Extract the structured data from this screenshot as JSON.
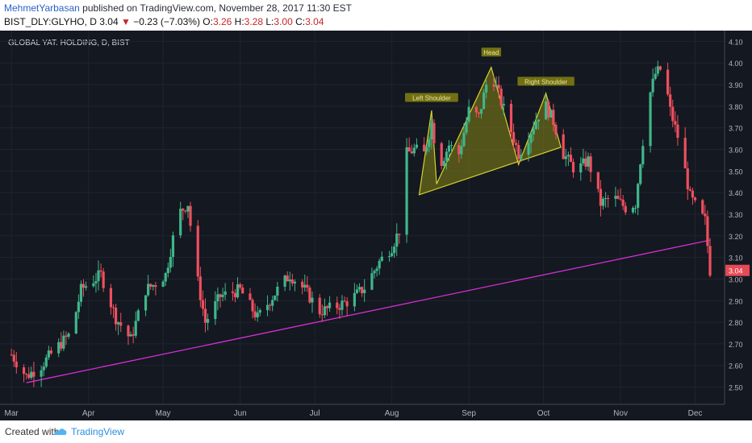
{
  "header": {
    "author": "MehmetYarbasan",
    "published_text": "published on TradingView.com, November 28, 2017 11:30 EST",
    "symbol": "BIST_DLY:GLYHO, D",
    "last": "3.04",
    "change": "−0.23 (−7.03%)",
    "o_label": "O:",
    "o_val": "3.26",
    "h_label": "H:",
    "h_val": "3.28",
    "l_label": "L:",
    "l_val": "3.00",
    "c_label": "C:",
    "c_val": "3.04"
  },
  "footer": {
    "created": "Created with",
    "brand": "TradingView"
  },
  "colors": {
    "up": "#3fb68b",
    "down": "#ef4f5f",
    "trend": "#d52fd5",
    "pattern_fill": "#8f8f12",
    "pattern_line": "#d8d232",
    "price_tag": "#e64a56"
  },
  "chart_data": {
    "type": "candlestick",
    "title": "GLOBAL YAT. HOLDING, D, BIST",
    "ylim": [
      2.42,
      4.15
    ],
    "y_ticks": [
      "2.50",
      "2.60",
      "2.70",
      "2.80",
      "2.90",
      "3.00",
      "3.10",
      "3.20",
      "3.30",
      "3.40",
      "3.50",
      "3.60",
      "3.70",
      "3.80",
      "3.90",
      "4.00",
      "4.10"
    ],
    "x_ticks": [
      {
        "label": "Mar",
        "day": 0
      },
      {
        "label": "Apr",
        "day": 31
      },
      {
        "label": "May",
        "day": 61
      },
      {
        "label": "Jun",
        "day": 92
      },
      {
        "label": "Jul",
        "day": 122
      },
      {
        "label": "Aug",
        "day": 153
      },
      {
        "label": "Sep",
        "day": 184
      },
      {
        "label": "Oct",
        "day": 214
      },
      {
        "label": "Nov",
        "day": 245
      },
      {
        "label": "Dec",
        "day": 275
      }
    ],
    "x_range": [
      -2,
      281
    ],
    "last_price_label": "3.04",
    "last_price": 3.04,
    "trendline": [
      {
        "day": 6,
        "price": 2.52
      },
      {
        "day": 281,
        "price": 3.18
      }
    ],
    "pattern_polygon": [
      {
        "day": 164,
        "price": 3.39
      },
      {
        "day": 169,
        "price": 3.78
      },
      {
        "day": 171,
        "price": 3.44
      },
      {
        "day": 193,
        "price": 3.98
      },
      {
        "day": 204,
        "price": 3.53
      },
      {
        "day": 215,
        "price": 3.86
      },
      {
        "day": 221,
        "price": 3.61
      }
    ],
    "annotations": [
      {
        "text": "Left Shoulder",
        "day": 169,
        "price": 3.835
      },
      {
        "text": "Head",
        "day": 193,
        "price": 4.045
      },
      {
        "text": "Right Shoulder",
        "day": 215,
        "price": 3.91
      }
    ],
    "anchors": [
      {
        "day": 0,
        "price": 2.65
      },
      {
        "day": 6,
        "price": 2.55
      },
      {
        "day": 12,
        "price": 2.6
      },
      {
        "day": 18,
        "price": 2.68
      },
      {
        "day": 24,
        "price": 2.75
      },
      {
        "day": 28,
        "price": 2.95
      },
      {
        "day": 31,
        "price": 2.98
      },
      {
        "day": 36,
        "price": 3.02
      },
      {
        "day": 42,
        "price": 2.82
      },
      {
        "day": 48,
        "price": 2.72
      },
      {
        "day": 54,
        "price": 2.95
      },
      {
        "day": 58,
        "price": 2.98
      },
      {
        "day": 62,
        "price": 3.02
      },
      {
        "day": 67,
        "price": 3.3
      },
      {
        "day": 71,
        "price": 3.35
      },
      {
        "day": 74,
        "price": 3.05
      },
      {
        "day": 78,
        "price": 2.8
      },
      {
        "day": 84,
        "price": 2.92
      },
      {
        "day": 92,
        "price": 2.95
      },
      {
        "day": 99,
        "price": 2.82
      },
      {
        "day": 107,
        "price": 2.95
      },
      {
        "day": 112,
        "price": 3.02
      },
      {
        "day": 118,
        "price": 2.95
      },
      {
        "day": 124,
        "price": 2.85
      },
      {
        "day": 130,
        "price": 2.87
      },
      {
        "day": 136,
        "price": 2.9
      },
      {
        "day": 142,
        "price": 2.96
      },
      {
        "day": 148,
        "price": 3.08
      },
      {
        "day": 153,
        "price": 3.15
      },
      {
        "day": 157,
        "price": 3.25
      },
      {
        "day": 159,
        "price": 3.58
      },
      {
        "day": 162,
        "price": 3.6
      },
      {
        "day": 166,
        "price": 3.58
      },
      {
        "day": 169,
        "price": 3.72
      },
      {
        "day": 172,
        "price": 3.52
      },
      {
        "day": 176,
        "price": 3.62
      },
      {
        "day": 180,
        "price": 3.58
      },
      {
        "day": 184,
        "price": 3.78
      },
      {
        "day": 188,
        "price": 3.75
      },
      {
        "day": 191,
        "price": 3.9
      },
      {
        "day": 194,
        "price": 3.92
      },
      {
        "day": 197,
        "price": 3.82
      },
      {
        "day": 200,
        "price": 3.72
      },
      {
        "day": 204,
        "price": 3.58
      },
      {
        "day": 208,
        "price": 3.66
      },
      {
        "day": 212,
        "price": 3.76
      },
      {
        "day": 215,
        "price": 3.8
      },
      {
        "day": 218,
        "price": 3.73
      },
      {
        "day": 222,
        "price": 3.58
      },
      {
        "day": 227,
        "price": 3.5
      },
      {
        "day": 232,
        "price": 3.55
      },
      {
        "day": 237,
        "price": 3.35
      },
      {
        "day": 242,
        "price": 3.38
      },
      {
        "day": 247,
        "price": 3.33
      },
      {
        "day": 251,
        "price": 3.35
      },
      {
        "day": 253,
        "price": 3.55
      },
      {
        "day": 256,
        "price": 3.82
      },
      {
        "day": 259,
        "price": 3.95
      },
      {
        "day": 262,
        "price": 3.98
      },
      {
        "day": 265,
        "price": 3.78
      },
      {
        "day": 269,
        "price": 3.62
      },
      {
        "day": 273,
        "price": 3.38
      },
      {
        "day": 277,
        "price": 3.3
      },
      {
        "day": 279,
        "price": 3.27
      },
      {
        "day": 281,
        "price": 3.04
      }
    ]
  }
}
